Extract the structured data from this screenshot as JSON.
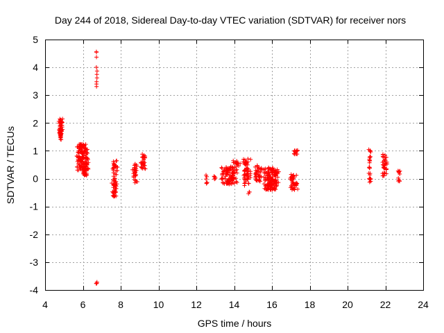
{
  "chart_data": {
    "type": "scatter",
    "title": "Day 244 of 2018, Sidereal Day-to-day VTEC variation (SDTVAR) for receiver nors",
    "xlabel": "GPS time / hours",
    "ylabel": "SDTVAR / TECUs",
    "xlim": [
      4,
      24
    ],
    "ylim": [
      -4,
      5
    ],
    "xticks": [
      "4",
      "6",
      "8",
      "10",
      "12",
      "14",
      "16",
      "18",
      "20",
      "22",
      "24"
    ],
    "yticks": [
      "-4",
      "-3",
      "-2",
      "-1",
      "0",
      "1",
      "2",
      "3",
      "4",
      "5"
    ],
    "grid": true,
    "marker": "+",
    "color": "#ff0000",
    "clusters": [
      {
        "x": [
          4.7,
          4.95
        ],
        "y": [
          1.4,
          2.15
        ],
        "n": 60
      },
      {
        "x": [
          5.6,
          6.3
        ],
        "y": [
          0.3,
          1.25
        ],
        "n": 120
      },
      {
        "x": [
          6.0,
          6.3
        ],
        "y": [
          0.1,
          0.6
        ],
        "n": 40
      },
      {
        "x": [
          6.7,
          6.75
        ],
        "y": [
          3.3,
          4.8
        ],
        "n": 10
      },
      {
        "x": [
          6.7,
          6.75
        ],
        "y": [
          -3.85,
          -3.65
        ],
        "n": 4
      },
      {
        "x": [
          7.5,
          7.85
        ],
        "y": [
          -0.65,
          0.65
        ],
        "n": 60
      },
      {
        "x": [
          8.6,
          8.9
        ],
        "y": [
          -0.15,
          0.55
        ],
        "n": 30
      },
      {
        "x": [
          9.0,
          9.35
        ],
        "y": [
          0.35,
          0.9
        ],
        "n": 30
      },
      {
        "x": [
          12.5,
          12.6
        ],
        "y": [
          -0.25,
          0.2
        ],
        "n": 6
      },
      {
        "x": [
          12.9,
          13.05
        ],
        "y": [
          -0.05,
          0.15
        ],
        "n": 5
      },
      {
        "x": [
          13.3,
          14.2
        ],
        "y": [
          -0.2,
          0.45
        ],
        "n": 110
      },
      {
        "x": [
          13.9,
          14.4
        ],
        "y": [
          0.45,
          0.65
        ],
        "n": 14
      },
      {
        "x": [
          14.4,
          14.9
        ],
        "y": [
          -0.25,
          0.75
        ],
        "n": 55
      },
      {
        "x": [
          14.75,
          14.85
        ],
        "y": [
          -0.55,
          -0.45
        ],
        "n": 3
      },
      {
        "x": [
          15.0,
          15.5
        ],
        "y": [
          -0.1,
          0.5
        ],
        "n": 40
      },
      {
        "x": [
          15.5,
          16.4
        ],
        "y": [
          -0.4,
          0.4
        ],
        "n": 150
      },
      {
        "x": [
          16.9,
          17.4
        ],
        "y": [
          -0.4,
          0.2
        ],
        "n": 45
      },
      {
        "x": [
          17.1,
          17.4
        ],
        "y": [
          0.88,
          1.02
        ],
        "n": 14
      },
      {
        "x": [
          21.1,
          21.25
        ],
        "y": [
          -0.15,
          1.05
        ],
        "n": 25
      },
      {
        "x": [
          21.8,
          22.1
        ],
        "y": [
          0.1,
          0.9
        ],
        "n": 35
      },
      {
        "x": [
          22.65,
          22.8
        ],
        "y": [
          -0.1,
          0.3
        ],
        "n": 12
      }
    ]
  }
}
